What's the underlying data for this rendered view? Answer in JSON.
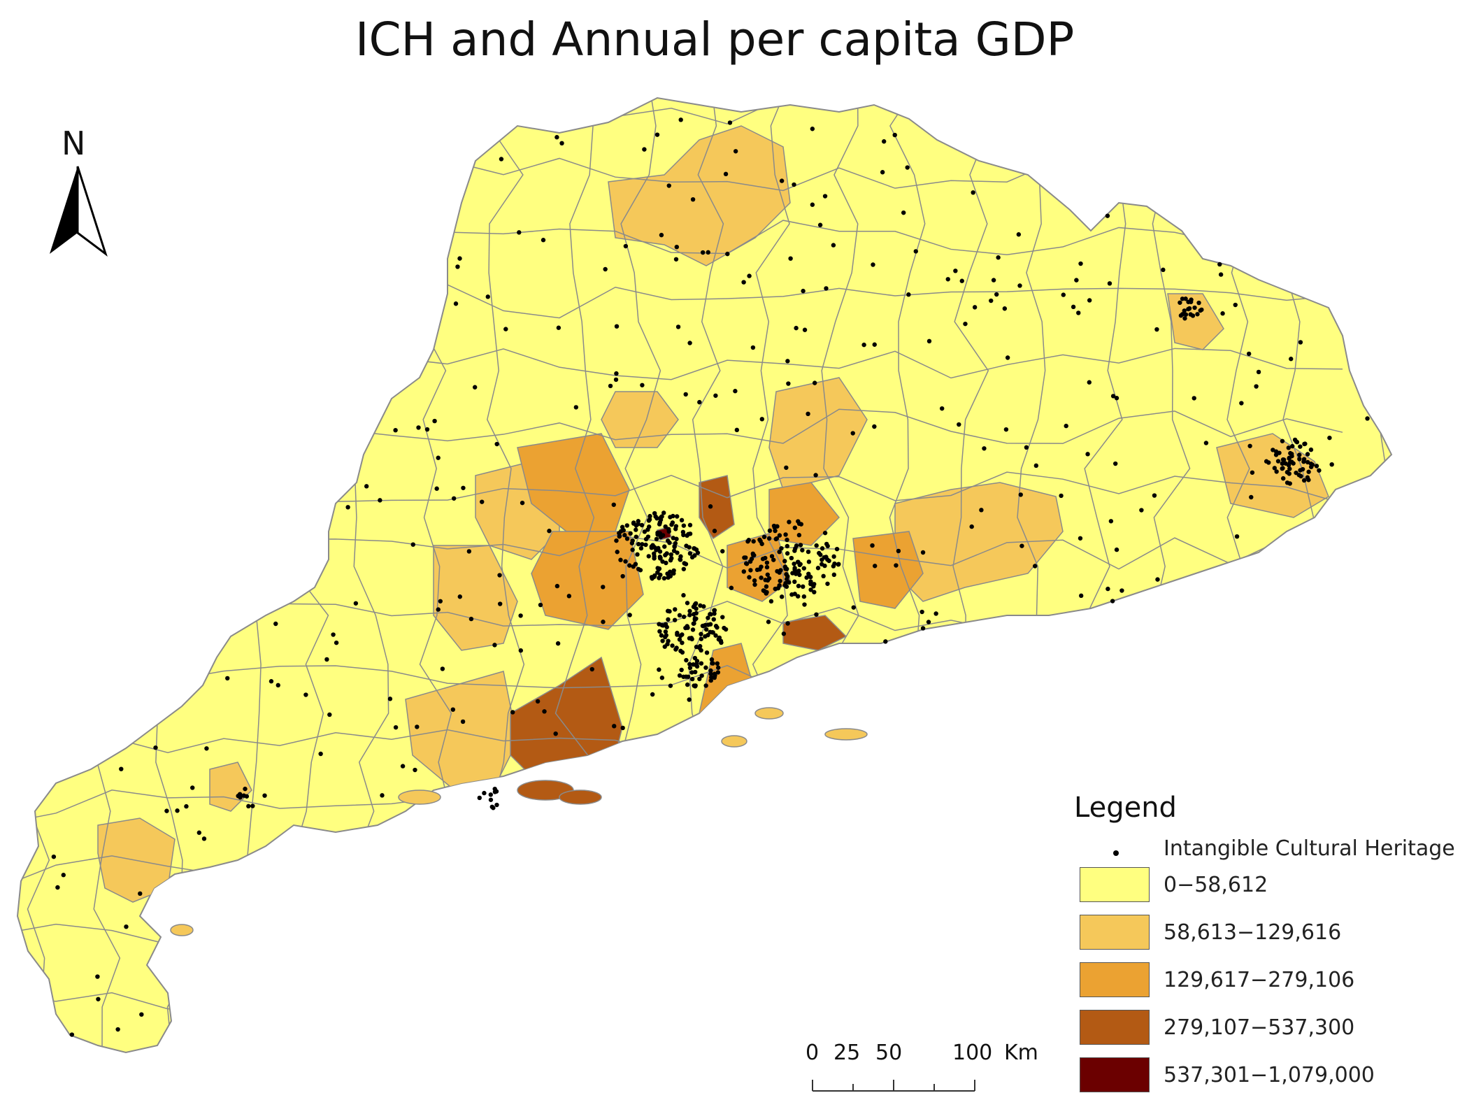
{
  "title": "ICH and Annual per capita GDP",
  "north_arrow": {
    "label": "N"
  },
  "scale_bar": {
    "ticks": [
      "0",
      "25",
      "50",
      "100"
    ],
    "unit": "Km"
  },
  "legend": {
    "title": "Legend",
    "points_label": "Intangible Cultural Heritage",
    "classes": [
      {
        "label": "0−58,612",
        "color": "#ffff80"
      },
      {
        "label": "58,613−129,616",
        "color": "#f5c85a"
      },
      {
        "label": "129,617−279,106",
        "color": "#eba232"
      },
      {
        "label": "279,107−537,300",
        "color": "#b35a14"
      },
      {
        "label": "537,301−1,079,000",
        "color": "#6b0000"
      }
    ]
  },
  "colors": {
    "boundary": "#8a8a8a",
    "point": "#000000"
  }
}
